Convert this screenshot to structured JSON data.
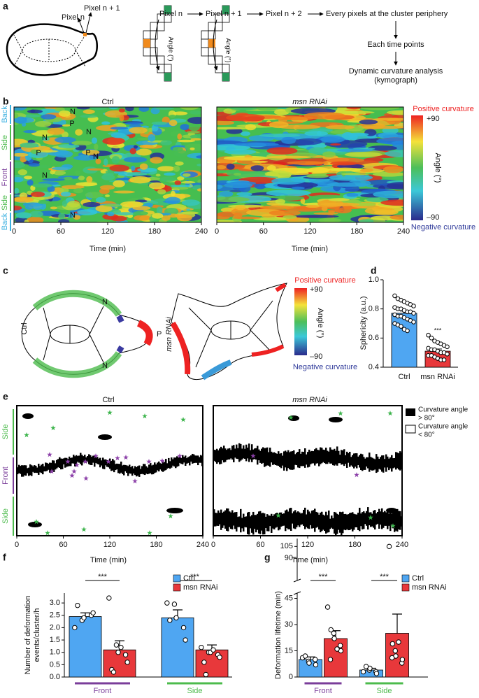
{
  "panel_labels": [
    "a",
    "b",
    "c",
    "d",
    "e",
    "f",
    "g"
  ],
  "panel_a": {
    "pixel_n": "Pixel n",
    "pixel_n1": "Pixel n + 1",
    "flow": [
      "Pixel n",
      "Pixel n + 1",
      "Pixel n + 2",
      "Every pixels at the cluster periphery"
    ],
    "step2": "Each time points",
    "step3": [
      "Dynamic curvature analysis",
      "(kymograph)"
    ],
    "angle_label": "Angle (°)"
  },
  "panel_b": {
    "titles": [
      "Ctrl",
      "msn RNAi"
    ],
    "regions": [
      "Back",
      "Side",
      "Front",
      "Side",
      "Back"
    ],
    "markers": [
      "N",
      "P",
      "N",
      "N",
      "P",
      "P",
      "N",
      "N",
      "N"
    ],
    "x_ticks": [
      0,
      60,
      120,
      180,
      240
    ],
    "x_label": "Time (min)",
    "colorbar": {
      "top": "Positive curvature",
      "max": "+90",
      "label": "Angle (°)",
      "min": "–90",
      "bottom": "Negative curvature"
    }
  },
  "panel_c": {
    "titles": [
      "Ctrl",
      "msn RNAi"
    ],
    "markers": [
      "N",
      "N",
      "P"
    ],
    "colorbar": {
      "top": "Positive curvature",
      "max": "+90",
      "label": "Angle (°)",
      "min": "–90",
      "bottom": "Negative curvature"
    }
  },
  "panel_e": {
    "titles": [
      "Ctrl",
      "msn RNAi"
    ],
    "regions": [
      "Side",
      "Front",
      "Side"
    ],
    "x_ticks": [
      0,
      60,
      120,
      180,
      240
    ],
    "x_label": "Time (min)",
    "legend": [
      [
        "Curvature angle",
        "> 80°"
      ],
      [
        "Curvature angle",
        "< 80°"
      ]
    ]
  },
  "chart_data": [
    {
      "type": "bar",
      "y_label": "Sphericity (a.u.)",
      "categories": [
        "Ctrl",
        "msn RNAi"
      ],
      "colors": [
        "#4fa6f2",
        "#e8383b"
      ],
      "values": [
        0.77,
        0.51
      ],
      "errors": [
        0.015,
        0.015
      ],
      "points": [
        [
          0.89,
          0.87,
          0.86,
          0.85,
          0.84,
          0.83,
          0.82,
          0.81,
          0.8,
          0.8,
          0.79,
          0.78,
          0.78,
          0.77,
          0.76,
          0.75,
          0.75,
          0.74,
          0.73,
          0.72,
          0.71,
          0.7,
          0.69,
          0.68,
          0.66,
          0.65
        ],
        [
          0.62,
          0.6,
          0.58,
          0.57,
          0.56,
          0.55,
          0.54,
          0.53,
          0.52,
          0.52,
          0.51,
          0.5,
          0.5,
          0.49,
          0.48,
          0.48,
          0.47,
          0.46,
          0.45,
          0.45
        ]
      ],
      "significance": "***",
      "ylim": [
        0.4,
        1.0
      ],
      "yticks": [
        0.4,
        0.6,
        0.8,
        {
          "value": 1,
          "label": "1.0"
        }
      ]
    },
    {
      "type": "bar",
      "y_label": [
        "Number of deformation",
        "events/cluster/h"
      ],
      "categories": [
        "Front",
        "Side"
      ],
      "category_colors": [
        "#7a3d9a",
        "#4cbb4c"
      ],
      "series": [
        {
          "name": "Ctrl",
          "color": "#4fa6f2",
          "values": [
            2.45,
            2.4
          ],
          "errors": [
            0.15,
            0.32
          ],
          "points": [
            [
              2.0,
              2.3,
              2.4,
              2.5,
              2.6,
              2.9
            ],
            [
              3.0,
              2.95,
              2.4,
              2.0,
              1.5,
              2.3
            ]
          ]
        },
        {
          "name": "msn RNAi",
          "color": "#e8383b",
          "values": [
            1.1,
            1.1
          ],
          "errors": [
            0.37,
            0.2
          ],
          "points": [
            [
              3.2,
              1.3,
              1.0,
              0.9,
              0.6,
              0.3,
              0.2,
              1.2
            ],
            [
              1.2,
              1.0,
              1.0,
              0.9,
              0.8,
              0.6,
              0.1,
              1.1
            ]
          ]
        }
      ],
      "significance": [
        "***",
        "***"
      ],
      "ylim": [
        0,
        3.4
      ],
      "yticks": [
        {
          "value": 0,
          "label": "0.0"
        },
        0.5,
        {
          "value": 1,
          "label": "1.0"
        },
        1.5,
        {
          "value": 2,
          "label": "2.0"
        },
        2.5,
        {
          "value": 3,
          "label": "3.0"
        }
      ]
    },
    {
      "type": "bar",
      "y_label": "Deformation lifetime (min)",
      "categories": [
        "Front",
        "Side"
      ],
      "category_colors": [
        "#7a3d9a",
        "#4cbb4c"
      ],
      "series": [
        {
          "name": "Ctrl",
          "color": "#4fa6f2",
          "values": [
            10,
            4
          ],
          "errors": [
            1.5,
            1
          ],
          "points": [
            [
              11,
              9,
              8,
              10,
              7,
              12
            ],
            [
              3,
              4,
              5,
              3,
              2,
              6
            ]
          ]
        },
        {
          "name": "msn RNAi",
          "color": "#e8383b",
          "values": [
            22,
            25
          ],
          "errors": [
            4.5,
            11
          ],
          "points": [
            [
              40,
              25,
              22,
              18,
              15,
              10,
              27,
              16
            ],
            [
              105,
              15,
              12,
              8,
              10,
              11,
              19,
              20
            ]
          ]
        }
      ],
      "significance": [
        "***",
        "***"
      ],
      "ylim": [
        0,
        48
      ],
      "yticks": [
        0,
        15,
        30,
        45
      ],
      "ylim_top": [
        62,
        115
      ],
      "yticks_top": [
        90,
        105
      ]
    }
  ]
}
